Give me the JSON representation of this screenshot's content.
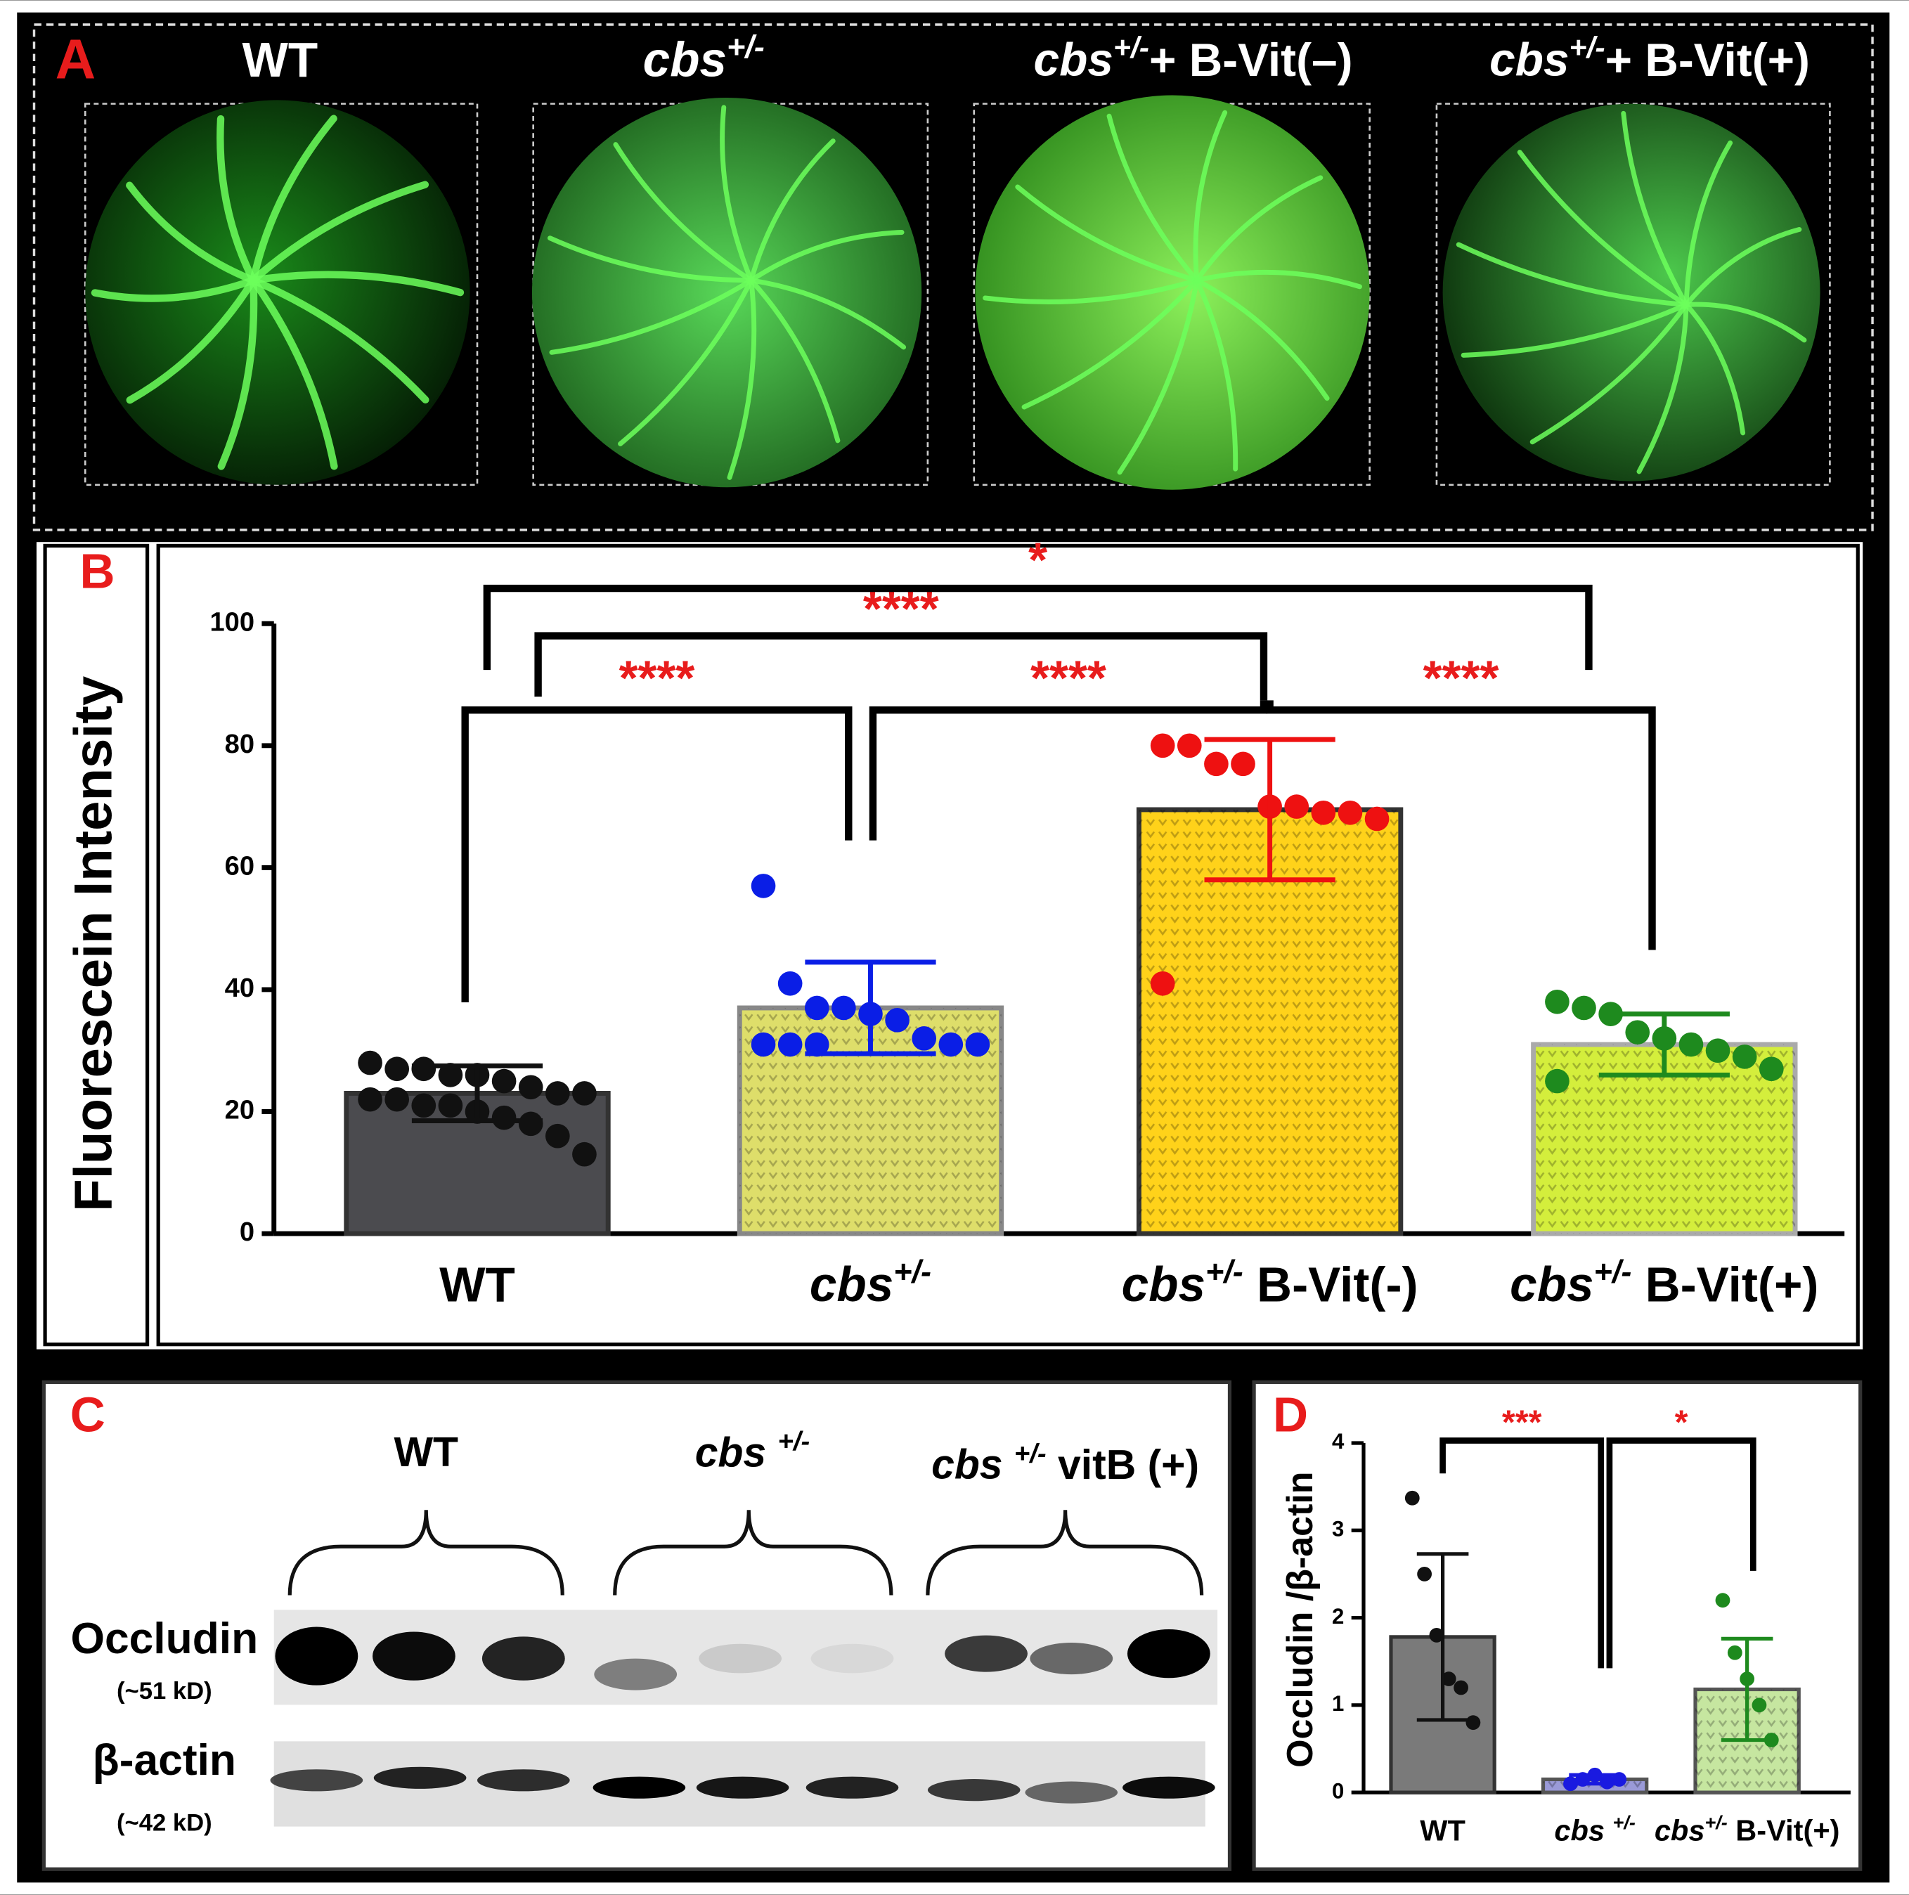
{
  "panel_labels": [
    "A",
    "B",
    "C",
    "D"
  ],
  "panel_a": {
    "labels": [
      "WT",
      "cbs+/-",
      "cbs+/-+ B-Vit(–)",
      "cbs+/-+ B-Vit(+)"
    ]
  },
  "panel_c": {
    "groups": [
      "WT",
      "cbs +/-",
      "cbs +/- vitB (+)"
    ],
    "bands": [
      {
        "name": "Occludin",
        "size": "(~51 kD)"
      },
      {
        "name": "β-actin",
        "size": "(~42 kD)"
      }
    ]
  },
  "chart_data": [
    {
      "type": "bar",
      "y_label": "Fluorescein Intensity",
      "categories": [
        "WT",
        "cbs+/-",
        "cbs+/- B-Vit(-)",
        "cbs+/- B-Vit(+)"
      ],
      "values": [
        23,
        37,
        69.5,
        31
      ],
      "errors": [
        4.5,
        7.5,
        11.5,
        5
      ],
      "colors": [
        "#4b4b4f",
        "#dede6a",
        "#ffd21a",
        "#d4ee3c"
      ],
      "edge_colors": [
        "#333333",
        "#888888",
        "#333333",
        "#aaaaaa"
      ],
      "point_colors": [
        "#111111",
        "#0a1ee6",
        "#ee1111",
        "#1e8a1e"
      ],
      "points": [
        [
          28,
          27,
          27,
          26,
          26,
          25,
          24,
          23,
          23,
          22,
          22,
          21,
          21,
          20,
          19,
          18,
          16,
          13
        ],
        [
          57,
          41,
          37,
          37,
          36,
          35,
          32,
          31,
          31,
          31,
          31,
          31
        ],
        [
          80,
          80,
          77,
          77,
          70,
          70,
          69,
          69,
          68,
          41
        ],
        [
          38,
          37,
          36,
          33,
          32,
          31,
          30,
          29,
          27,
          25
        ]
      ],
      "ylim": [
        0,
        100
      ],
      "yticks": [
        0,
        20,
        40,
        60,
        80,
        100
      ],
      "significance": [
        {
          "label": "****",
          "between": [
            "WT",
            "cbs+/-"
          ]
        },
        {
          "label": "****",
          "between": [
            "cbs+/-",
            "cbs+/- B-Vit(-)"
          ]
        },
        {
          "label": "****",
          "between": [
            "cbs+/- B-Vit(-)",
            "cbs+/- B-Vit(+)"
          ]
        },
        {
          "label": "****",
          "between": [
            "WT",
            "cbs+/- B-Vit(-)"
          ]
        },
        {
          "label": "*",
          "between": [
            "WT",
            "cbs+/- B-Vit(+)"
          ]
        }
      ]
    },
    {
      "type": "bar",
      "y_label": "Occludin /β-actin",
      "categories": [
        "WT",
        "cbs +/-",
        "cbs+/- B-Vit(+)"
      ],
      "values": [
        1.78,
        0.15,
        1.18
      ],
      "errors": [
        0.95,
        0.05,
        0.58
      ],
      "colors": [
        "#7a7a7a",
        "#9a9ad8",
        "#c6e6a0"
      ],
      "edge_colors": [
        "#333333",
        "#555555",
        "#555555"
      ],
      "point_colors": [
        "#111111",
        "#1a1ae0",
        "#1e8a1e"
      ],
      "points": [
        [
          3.37,
          2.5,
          1.8,
          1.3,
          1.2,
          0.8
        ],
        [
          0.1,
          0.15,
          0.2,
          0.12,
          0.15
        ],
        [
          2.2,
          1.6,
          1.3,
          1.0,
          0.6
        ]
      ],
      "ylim": [
        0,
        4
      ],
      "yticks": [
        0,
        1,
        2,
        3,
        4
      ],
      "significance": [
        {
          "label": "***",
          "between": [
            "WT",
            "cbs +/-"
          ]
        },
        {
          "label": "*",
          "between": [
            "cbs +/-",
            "cbs+/- B-Vit(+)"
          ]
        }
      ]
    }
  ]
}
